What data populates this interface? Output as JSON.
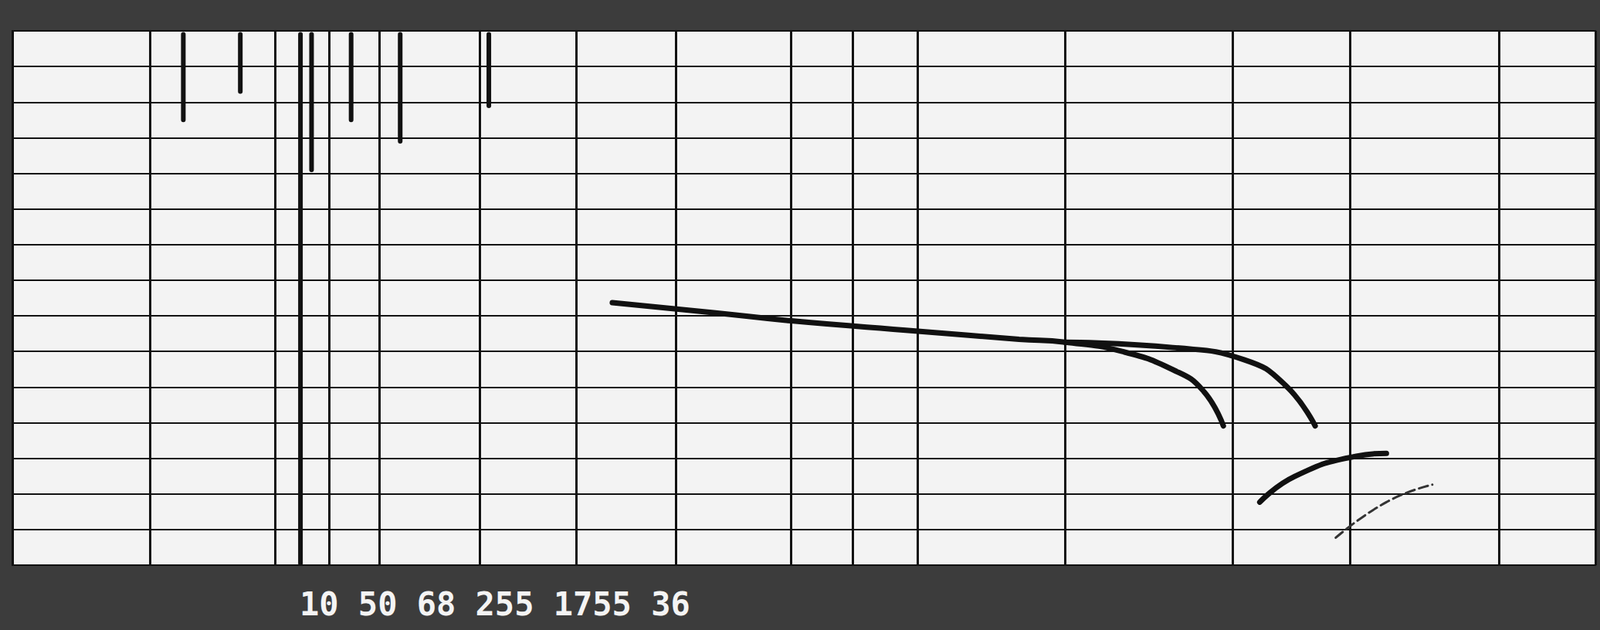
{
  "chart_data": {
    "type": "line",
    "annotation": "10 50 68 255 1755 36",
    "xlim": [
      0,
      100
    ],
    "xticks": [
      0,
      8.7,
      16.6,
      20.0,
      23.2,
      29.5,
      35.6,
      41.9,
      49.2,
      53.1,
      57.2,
      66.5,
      77.1,
      84.5,
      93.9,
      100
    ],
    "ylim": [
      0,
      15
    ],
    "yticks": [
      0,
      1,
      2,
      3,
      4,
      5,
      6,
      7,
      8,
      9,
      10,
      11,
      12,
      13,
      14,
      15
    ],
    "grid": true,
    "tick_labels": false,
    "series": [
      {
        "color": "#111111",
        "line_style": "solid",
        "x": [
          37.9,
          44.3,
          49.2,
          57.2,
          63.6,
          66.5,
          70.1,
          73.3,
          75.2,
          76.5
        ],
        "values": [
          7.37,
          7.09,
          6.86,
          6.57,
          6.34,
          6.26,
          6.0,
          5.49,
          4.91,
          3.91
        ]
      },
      {
        "color": "#111111",
        "line_style": "solid",
        "x": [
          66.5,
          73.3,
          77.8,
          80.4,
          82.3
        ],
        "values": [
          6.26,
          6.11,
          5.77,
          5.06,
          3.91
        ]
      },
      {
        "color": "#111111",
        "line_style": "solid",
        "x": [
          78.8,
          81.0,
          84.9,
          86.8
        ],
        "values": [
          1.77,
          2.49,
          3.06,
          3.14
        ]
      },
      {
        "color": "#333333",
        "line_style": "dashed",
        "x": [
          83.6,
          86.8,
          89.7
        ],
        "values": [
          0.77,
          1.77,
          2.26
        ]
      },
      {
        "color": "#111111",
        "line_style": "solid",
        "x": [
          10.8,
          10.8,
          null,
          14.4,
          14.4,
          null,
          18.2,
          18.2,
          null,
          18.9,
          18.9,
          null,
          21.4,
          21.4,
          null,
          24.5,
          24.5,
          null,
          30.1,
          30.1
        ],
        "values": [
          14.9,
          12.5,
          null,
          14.9,
          13.3,
          null,
          14.9,
          0.05,
          null,
          14.9,
          11.1,
          null,
          14.9,
          12.5,
          null,
          14.9,
          11.9,
          null,
          14.9,
          12.9
        ]
      }
    ]
  }
}
